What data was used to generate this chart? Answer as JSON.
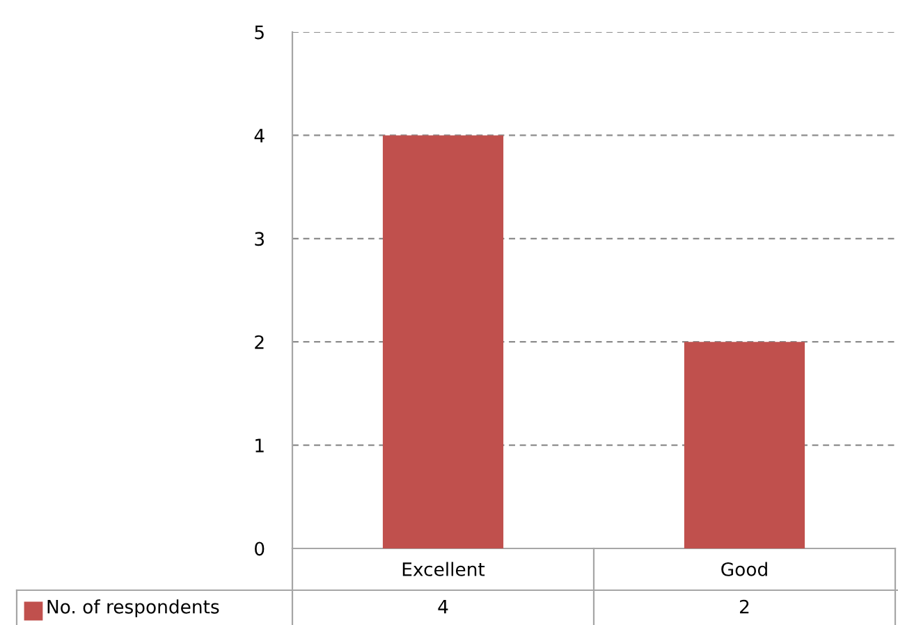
{
  "chart_data": {
    "type": "bar",
    "categories": [
      "Excellent",
      "Good"
    ],
    "series": [
      {
        "name": "No. of respondents",
        "color": "#c0504d",
        "values": [
          4,
          2
        ]
      }
    ],
    "ylim": [
      0,
      5
    ],
    "yticks": [
      0,
      1,
      2,
      3,
      4,
      5
    ],
    "grid": "y",
    "data_labels": true,
    "legend": "bottom left"
  }
}
